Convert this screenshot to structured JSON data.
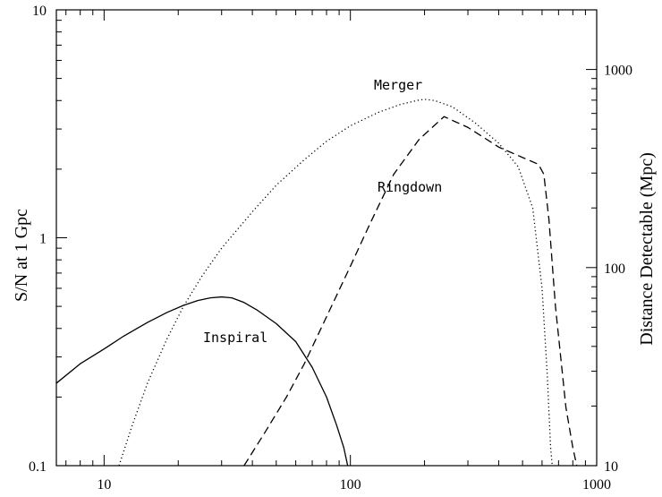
{
  "chart_data": {
    "type": "line",
    "x_scale": "log",
    "y_scale": "log",
    "xlim": [
      6.4,
      1000
    ],
    "ylim": [
      0.1,
      10
    ],
    "y2lim": [
      10,
      2000
    ],
    "x_ticks": [
      "10",
      "100",
      "1000"
    ],
    "y_ticks": [
      "0.1",
      "1",
      "10"
    ],
    "y2_ticks": [
      "10",
      "100",
      "1000"
    ],
    "xlabel": "",
    "ylabel": "S/N at 1 Gpc",
    "y2label": "Distance Detectable (Mpc)",
    "grid": false,
    "legend": "none",
    "series": [
      {
        "name": "Inspiral",
        "style": "solid",
        "x": [
          6.4,
          8,
          10,
          12,
          15,
          18,
          21,
          24,
          27,
          30,
          33,
          37,
          42,
          50,
          60,
          70,
          80,
          88,
          94,
          97.5
        ],
        "y": [
          0.23,
          0.28,
          0.325,
          0.37,
          0.425,
          0.47,
          0.505,
          0.53,
          0.545,
          0.55,
          0.545,
          0.52,
          0.48,
          0.42,
          0.35,
          0.27,
          0.2,
          0.15,
          0.12,
          0.1
        ]
      },
      {
        "name": "Merger",
        "style": "dotted",
        "x": [
          11.5,
          13,
          15,
          18,
          21,
          25,
          30,
          40,
          50,
          65,
          80,
          100,
          130,
          160,
          190,
          200,
          220,
          260,
          320,
          400,
          480,
          550,
          600,
          630,
          650,
          660
        ],
        "y": [
          0.1,
          0.15,
          0.23,
          0.36,
          0.5,
          0.68,
          0.9,
          1.3,
          1.7,
          2.2,
          2.65,
          3.1,
          3.55,
          3.85,
          4.02,
          4.05,
          4.0,
          3.75,
          3.2,
          2.6,
          2.05,
          1.35,
          0.6,
          0.25,
          0.12,
          0.1
        ]
      },
      {
        "name": "Ringdown",
        "style": "dashed",
        "x": [
          37,
          45,
          55,
          65,
          80,
          100,
          120,
          150,
          190,
          240,
          300,
          400,
          500,
          580,
          610,
          640,
          680,
          750,
          800,
          830
        ],
        "y": [
          0.1,
          0.14,
          0.2,
          0.28,
          0.45,
          0.75,
          1.15,
          1.9,
          2.7,
          3.4,
          3.05,
          2.5,
          2.25,
          2.1,
          1.9,
          1.2,
          0.5,
          0.18,
          0.12,
          0.1
        ]
      }
    ],
    "annotations": [
      "Inspiral",
      "Merger",
      "Ringdown"
    ]
  }
}
